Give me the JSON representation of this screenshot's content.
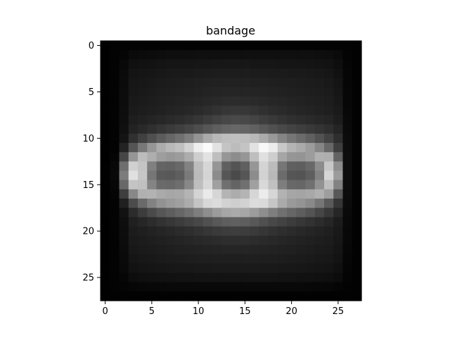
{
  "chart_data": {
    "type": "heatmap",
    "title": "bandage",
    "xlabel": "",
    "ylabel": "",
    "colormap": "gray",
    "rows": 28,
    "cols": 28,
    "xlim": [
      -0.5,
      27.5
    ],
    "ylim": [
      27.5,
      -0.5
    ],
    "x_ticks": [
      0,
      5,
      10,
      15,
      20,
      25
    ],
    "y_ticks": [
      0,
      5,
      10,
      15,
      20,
      25
    ],
    "x_tick_labels": [
      "0",
      "5",
      "10",
      "15",
      "20",
      "25"
    ],
    "y_tick_labels": [
      "0",
      "5",
      "10",
      "15",
      "20",
      "25"
    ],
    "grid": false,
    "value_range": [
      0,
      255
    ],
    "background_value": 2,
    "pixel_values": [
      [
        1,
        3,
        3,
        3,
        3,
        3,
        3,
        3,
        3,
        3,
        3,
        3,
        3,
        3,
        3,
        3,
        3,
        3,
        3,
        3,
        3,
        3,
        3,
        3,
        3,
        3,
        3,
        2
      ],
      [
        1,
        3,
        5,
        10,
        11,
        12,
        13,
        14,
        14,
        14,
        15,
        15,
        15,
        15,
        15,
        15,
        15,
        15,
        15,
        15,
        15,
        15,
        15,
        14,
        13,
        10,
        4,
        2
      ],
      [
        1,
        3,
        8,
        16,
        17,
        18,
        20,
        21,
        21,
        21,
        22,
        22,
        23,
        23,
        23,
        23,
        22,
        22,
        22,
        21,
        21,
        21,
        20,
        19,
        18,
        14,
        5,
        2
      ],
      [
        1,
        3,
        10,
        20,
        21,
        22,
        24,
        25,
        26,
        26,
        27,
        28,
        29,
        29,
        29,
        29,
        28,
        28,
        27,
        27,
        26,
        26,
        25,
        24,
        22,
        17,
        6,
        2
      ],
      [
        1,
        3,
        11,
        22,
        23,
        25,
        27,
        28,
        29,
        30,
        31,
        32,
        33,
        33,
        33,
        33,
        32,
        32,
        31,
        30,
        30,
        29,
        28,
        27,
        25,
        20,
        6,
        2
      ],
      [
        1,
        3,
        12,
        23,
        25,
        27,
        29,
        30,
        31,
        32,
        33,
        35,
        36,
        37,
        37,
        37,
        36,
        35,
        34,
        33,
        32,
        31,
        30,
        29,
        27,
        22,
        7,
        2
      ],
      [
        1,
        3,
        12,
        25,
        27,
        29,
        31,
        32,
        34,
        35,
        37,
        39,
        41,
        43,
        44,
        43,
        42,
        40,
        38,
        37,
        35,
        34,
        32,
        31,
        29,
        24,
        7,
        2
      ],
      [
        1,
        3,
        13,
        27,
        29,
        31,
        33,
        35,
        37,
        39,
        42,
        46,
        50,
        54,
        56,
        55,
        52,
        48,
        44,
        42,
        39,
        37,
        35,
        33,
        31,
        26,
        8,
        2
      ],
      [
        1,
        3,
        14,
        30,
        33,
        36,
        39,
        42,
        45,
        49,
        54,
        60,
        66,
        71,
        74,
        72,
        68,
        62,
        57,
        52,
        48,
        45,
        42,
        39,
        36,
        29,
        9,
        2
      ],
      [
        1,
        3,
        16,
        35,
        41,
        47,
        53,
        58,
        63,
        69,
        77,
        86,
        94,
        100,
        103,
        101,
        96,
        88,
        80,
        73,
        67,
        62,
        57,
        52,
        46,
        36,
        10,
        2
      ],
      [
        1,
        3,
        20,
        48,
        64,
        79,
        92,
        102,
        112,
        126,
        148,
        170,
        184,
        190,
        192,
        190,
        184,
        171,
        153,
        133,
        118,
        107,
        96,
        82,
        66,
        46,
        11,
        2
      ],
      [
        1,
        3,
        35,
        85,
        120,
        150,
        172,
        184,
        192,
        210,
        238,
        250,
        226,
        196,
        188,
        196,
        226,
        248,
        236,
        200,
        180,
        170,
        156,
        134,
        104,
        62,
        12,
        2
      ],
      [
        1,
        5,
        70,
        150,
        188,
        174,
        158,
        152,
        156,
        172,
        206,
        226,
        190,
        150,
        140,
        150,
        190,
        224,
        206,
        166,
        150,
        148,
        156,
        176,
        174,
        98,
        13,
        2
      ],
      [
        1,
        8,
        110,
        208,
        196,
        128,
        100,
        98,
        104,
        130,
        188,
        214,
        150,
        96,
        84,
        96,
        150,
        212,
        188,
        118,
        96,
        94,
        104,
        140,
        200,
        142,
        14,
        2
      ],
      [
        1,
        9,
        124,
        224,
        198,
        118,
        90,
        88,
        94,
        122,
        186,
        212,
        140,
        86,
        74,
        86,
        140,
        210,
        184,
        108,
        86,
        84,
        94,
        130,
        214,
        156,
        14,
        2
      ],
      [
        1,
        7,
        104,
        196,
        192,
        132,
        106,
        104,
        110,
        136,
        190,
        216,
        160,
        112,
        100,
        112,
        160,
        216,
        192,
        126,
        104,
        102,
        112,
        146,
        190,
        130,
        13,
        2
      ],
      [
        1,
        5,
        62,
        136,
        176,
        178,
        170,
        166,
        168,
        180,
        212,
        234,
        214,
        180,
        172,
        180,
        214,
        236,
        214,
        178,
        166,
        164,
        168,
        176,
        158,
        88,
        12,
        2
      ],
      [
        1,
        3,
        32,
        76,
        106,
        130,
        146,
        154,
        160,
        172,
        196,
        216,
        220,
        210,
        206,
        210,
        220,
        218,
        198,
        170,
        154,
        148,
        138,
        118,
        90,
        54,
        11,
        2
      ],
      [
        1,
        3,
        18,
        44,
        60,
        74,
        86,
        94,
        102,
        112,
        126,
        142,
        156,
        166,
        170,
        166,
        156,
        142,
        126,
        112,
        102,
        94,
        84,
        70,
        56,
        38,
        10,
        2
      ],
      [
        1,
        3,
        14,
        32,
        38,
        44,
        50,
        55,
        60,
        66,
        72,
        80,
        88,
        94,
        96,
        94,
        88,
        80,
        72,
        66,
        60,
        55,
        50,
        44,
        38,
        28,
        9,
        2
      ],
      [
        1,
        3,
        13,
        28,
        31,
        34,
        37,
        40,
        43,
        46,
        50,
        54,
        58,
        61,
        62,
        61,
        58,
        54,
        50,
        46,
        43,
        40,
        37,
        34,
        31,
        25,
        8,
        2
      ],
      [
        1,
        3,
        12,
        26,
        28,
        30,
        32,
        34,
        36,
        38,
        40,
        42,
        44,
        46,
        46,
        46,
        44,
        42,
        40,
        38,
        36,
        34,
        32,
        30,
        28,
        23,
        8,
        2
      ],
      [
        1,
        3,
        11,
        24,
        26,
        27,
        29,
        30,
        32,
        33,
        34,
        35,
        36,
        37,
        37,
        37,
        36,
        35,
        34,
        33,
        32,
        30,
        29,
        27,
        26,
        21,
        7,
        2
      ],
      [
        1,
        3,
        10,
        21,
        23,
        24,
        26,
        27,
        28,
        29,
        30,
        30,
        31,
        31,
        31,
        31,
        31,
        30,
        30,
        29,
        28,
        27,
        26,
        24,
        23,
        19,
        6,
        2
      ],
      [
        1,
        3,
        9,
        18,
        20,
        21,
        22,
        23,
        24,
        24,
        25,
        25,
        26,
        26,
        26,
        26,
        26,
        25,
        25,
        24,
        24,
        23,
        22,
        21,
        20,
        16,
        5,
        2
      ],
      [
        1,
        3,
        6,
        13,
        15,
        16,
        17,
        17,
        18,
        18,
        19,
        19,
        19,
        19,
        19,
        19,
        19,
        19,
        19,
        18,
        18,
        17,
        17,
        16,
        15,
        12,
        4,
        2
      ],
      [
        1,
        3,
        4,
        6,
        7,
        8,
        8,
        9,
        9,
        9,
        9,
        9,
        9,
        9,
        9,
        9,
        9,
        9,
        9,
        9,
        9,
        9,
        8,
        8,
        7,
        5,
        3,
        2
      ],
      [
        1,
        2,
        2,
        2,
        2,
        2,
        2,
        2,
        2,
        2,
        2,
        2,
        2,
        2,
        2,
        2,
        2,
        2,
        2,
        2,
        2,
        2,
        2,
        2,
        2,
        2,
        2,
        2
      ]
    ]
  }
}
